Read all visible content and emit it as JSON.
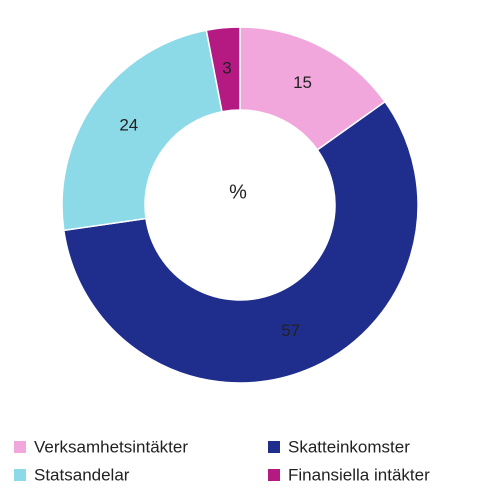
{
  "chart_data": {
    "type": "donut",
    "center_label": "%",
    "categories": [
      "Verksamhetsintäkter",
      "Skatteinkomster",
      "Statsandelar",
      "Finansiella intäkter"
    ],
    "values": [
      15,
      57,
      24,
      3
    ],
    "colors": [
      "#f2a7dc",
      "#1f2d8c",
      "#8cd9e8",
      "#b51a83"
    ],
    "legend": "bottom"
  }
}
